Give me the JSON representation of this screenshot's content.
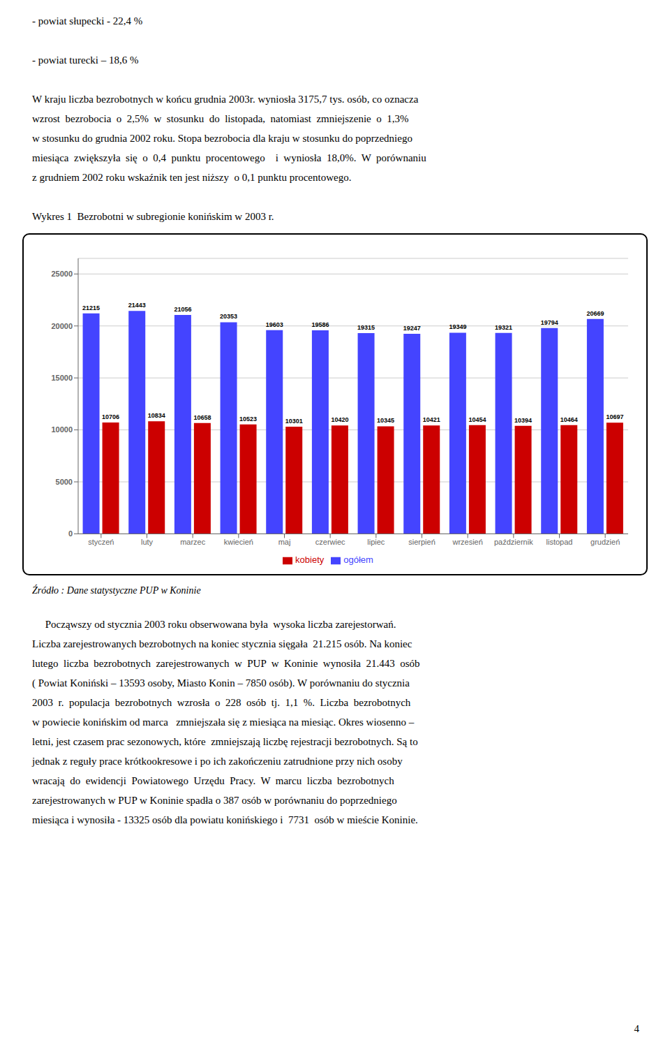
{
  "chart_data": {
    "type": "bar",
    "title": "Wykres 1  Bezrobotni w subregionie konińskim w 2003 r.",
    "categories": [
      "styczeń",
      "luty",
      "marzec",
      "kwiecień",
      "maj",
      "czerwiec",
      "lipiec",
      "sierpień",
      "wrzesień",
      "październik",
      "listopad",
      "grudzień"
    ],
    "series": [
      {
        "name": "ogółem",
        "color": "#4444FF",
        "values": [
          21215,
          21443,
          21056,
          20353,
          19603,
          19586,
          19315,
          19247,
          19349,
          19321,
          19794,
          20669
        ]
      },
      {
        "name": "kobiety",
        "color": "#CC0000",
        "values": [
          10706,
          10834,
          10658,
          10523,
          10301,
          10420,
          10345,
          10421,
          10454,
          10394,
          10464,
          10697
        ]
      }
    ],
    "ylim": [
      0,
      26500
    ],
    "yticks": [
      0,
      5000,
      10000,
      15000,
      20000,
      25000
    ],
    "grid": true,
    "legend": "bottom",
    "data_labels": true,
    "annotations": {
      "text_above": [
        [
          "- powiat słupecki - 22,4 %"
        ],
        [
          "- powiat turecki – 18,6 %"
        ],
        [
          "W kraju liczba bezrobotnych w końcu grudnia 2003r. wyniosła 3175,7 tys. osób, co oznacza",
          "wzrost  bezrobocia  o  2,5%  w  stosunku  do  listopada,  natomiast  zmniejszenie  o  1,3%",
          "w stosunku do grudnia 2002 roku. Stopa bezrobocia dla kraju w stosunku do poprzedniego",
          "miesiąca  zwiększyła  się  o  0,4  punktu  procentowego    i  wyniosła  18,0%.  W  porównaniu",
          "z grudniem 2002 roku wskaźnik ten jest niższy  o 0,1 punktu procentowego."
        ]
      ],
      "source": "Źródło : Dane statystyczne PUP w Koninie",
      "text_below": [
        "     Począwszy od stycznia 2003 roku obserwowana była  wysoka liczba zarejestorwań.",
        "Liczba zarejestrowanych bezrobotnych na koniec stycznia sięgała  21.215 osób. Na koniec",
        "lutego  liczba  bezrobotnych  zarejestrowanych  w  PUP  w  Koninie  wynosiła  21.443  osób",
        "( Powiat Koniński – 13593 osoby, Miasto Konin – 7850 osób). W porównaniu do stycznia",
        "2003  r.  populacja  bezrobotnych  wzrosła  o  228  osób  tj.  1,1  %.  Liczba  bezrobotnych",
        "w powiecie konińskim od marca   zmniejszała się z miesiąca na miesiąc. Okres wiosenno –",
        "letni, jest czasem prac sezonowych, które  zmniejszają liczbę rejestracji bezrobotnych. Są to",
        "jednak z reguły prace krótkookresowe i po ich zakończeniu zatrudnione przy nich osoby",
        "wracają  do  ewidencji  Powiatowego  Urzędu  Pracy.  W  marcu  liczba  bezrobotnych",
        "zarejestrowanych w PUP w Koninie spadła o 387 osób w porównaniu do poprzedniego",
        "miesiąca i wynosiła - 13325 osób dla powiatu konińskiego i  7731  osób w mieście Koninie."
      ],
      "page_number": "4"
    }
  }
}
